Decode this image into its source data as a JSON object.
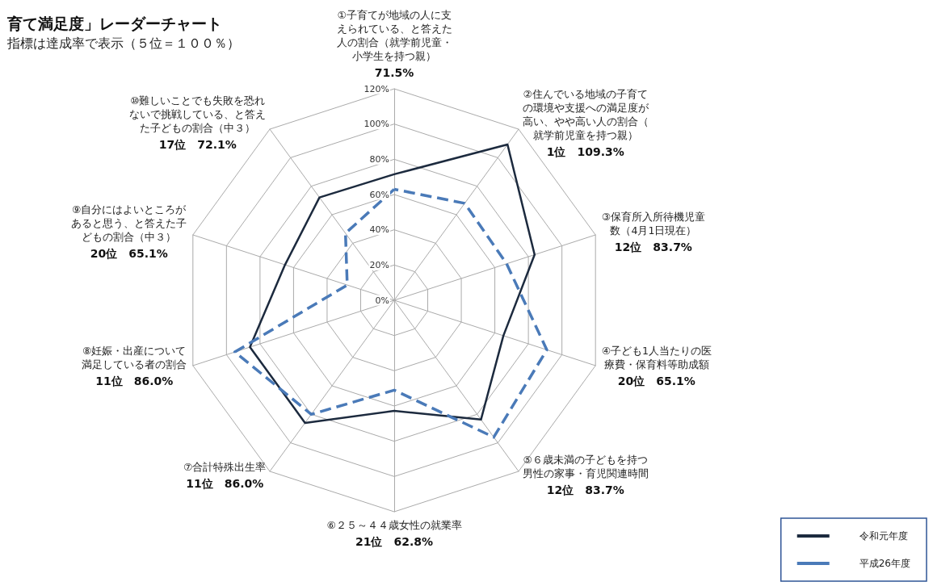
{
  "chart_data": {
    "type": "radar",
    "title": "育て満足度」レーダーチャート",
    "subtitle": "指標は達成率で表示（５位＝１００％）",
    "categories": [
      "①子育てが地域の人に支えられている、と答えた人の割合（就学前児童・小学生を持つ親）",
      "②住んでいる地域の子育ての環境や支援への満足度が高い、やや高い人の割合（就学前児童を持つ親）",
      "③保育所入所待機児童数（4月1日現在）",
      "④子ども1人当たりの医療費・保育料等助成額",
      "⑤６歳未満の子どもを持つ男性の家事・育児関連時間",
      "⑥２５～４４歳女性の就業率",
      "⑦合計特殊出生率",
      "⑧妊娠・出産について満足している者の割合",
      "⑨自分にはよいところがあると思う、と答えた子どもの割合（中３）",
      "⑩難しいことでも失敗を恐れないで挑戦している、と答えた子どもの割合（中３）"
    ],
    "series": [
      {
        "name": "令和元年度",
        "color": "#1c2a3e",
        "line_style": "solid",
        "values": [
          71.5,
          109.3,
          83.7,
          65.1,
          83.7,
          62.8,
          86.0,
          86.0,
          65.1,
          72.1
        ]
      },
      {
        "name": "平成26年度",
        "color": "#4a7ab8",
        "line_style": "dashed",
        "values": [
          63,
          68,
          67,
          91,
          96,
          51,
          80,
          95,
          28,
          47
        ]
      }
    ],
    "annotations": [
      {
        "text": "71.5%",
        "x": "①子育てが地域の人に支えられている、と答えた人の割合（就学前児童・小学生を持つ親）"
      },
      {
        "text": "1位　109.3%",
        "x": "②住んでいる地域の子育ての環境や支援への満足度が高い、やや高い人の割合（就学前児童を持つ親）"
      },
      {
        "text": "12位　83.7%",
        "x": "③保育所入所待機児童数（4月1日現在）"
      },
      {
        "text": "20位　65.1%",
        "x": "④子ども1人当たりの医療費・保育料等助成額"
      },
      {
        "text": "12位　83.7%",
        "x": "⑤６歳未満の子どもを持つ男性の家事・育児関連時間"
      },
      {
        "text": "21位　62.8%",
        "x": "⑥２５～４４歳女性の就業率"
      },
      {
        "text": "11位　86.0%",
        "x": "⑦合計特殊出生率"
      },
      {
        "text": "11位　86.0%",
        "x": "⑧妊娠・出産について満足している者の割合"
      },
      {
        "text": "20位　65.1%",
        "x": "⑨自分にはよいところがあると思う、と答えた子どもの割合（中３）"
      },
      {
        "text": "17位　72.1%",
        "x": "⑩難しいことでも失敗を恐れないで挑戦している、と答えた子どもの割合（中３）"
      }
    ],
    "ylim": [
      0,
      120
    ],
    "yticks": [
      {
        "value": 0,
        "label": "0%"
      },
      {
        "value": 20,
        "label": "20%"
      },
      {
        "value": 40,
        "label": "40%"
      },
      {
        "value": 60,
        "label": "60%"
      },
      {
        "value": 80,
        "label": "80%"
      },
      {
        "value": 100,
        "label": "100%"
      },
      {
        "value": 120,
        "label": "120%"
      }
    ],
    "grid": true,
    "marker": "none",
    "legend": "bottom right"
  }
}
